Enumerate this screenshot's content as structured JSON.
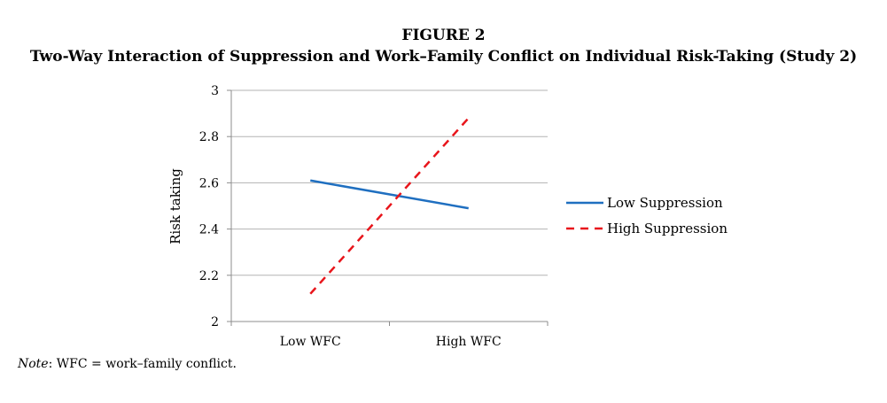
{
  "figure": {
    "label": "FIGURE 2",
    "title": "Two-Way Interaction of Suppression and Work–Family Conflict on Individual Risk-Taking (Study 2)"
  },
  "note": {
    "prefix": "Note",
    "text": ": WFC = work–family conflict."
  },
  "chart_data": {
    "type": "line",
    "categories": [
      "Low WFC",
      "High WFC"
    ],
    "series": [
      {
        "name": "Low Suppression",
        "values": [
          2.61,
          2.49
        ],
        "color": "#1f6fc0",
        "dash": "solid"
      },
      {
        "name": "High Suppression",
        "values": [
          2.12,
          2.88
        ],
        "color": "#e8151b",
        "dash": "dashed"
      }
    ],
    "ylabel": "Risk taking",
    "xlabel": "",
    "ylim": [
      2,
      3
    ],
    "yticks": [
      "2",
      "2.2",
      "2.4",
      "2.6",
      "2.8",
      "3"
    ],
    "grid": true,
    "legend_position": "right"
  }
}
